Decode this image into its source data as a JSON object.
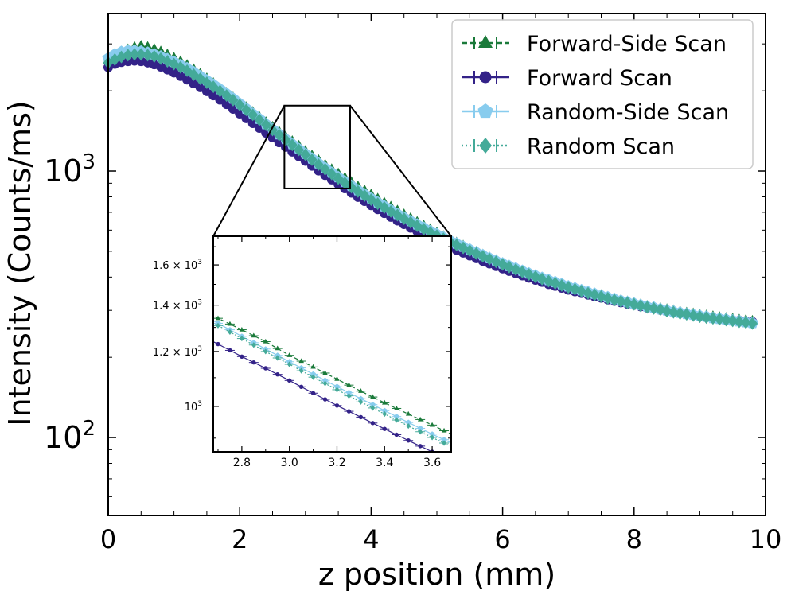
{
  "chart_data": {
    "type": "line",
    "xlabel": "z position (mm)",
    "ylabel": "Intensity (Counts/ms)",
    "xlim": [
      0,
      10
    ],
    "ylim": [
      51,
      3900
    ],
    "yscale": "log",
    "x_ticks": [
      "0",
      "2",
      "4",
      "6",
      "8",
      "10"
    ],
    "y_ticks": [
      {
        "base": "10",
        "exp": "2"
      },
      {
        "base": "10",
        "exp": "3"
      }
    ],
    "legend_position": "top-right",
    "x": [
      0.0,
      0.1,
      0.2,
      0.3,
      0.4,
      0.5,
      0.6,
      0.7,
      0.8,
      0.9,
      1.0,
      1.1,
      1.2,
      1.3,
      1.4,
      1.5,
      1.6,
      1.7,
      1.8,
      1.9,
      2.0,
      2.1,
      2.2,
      2.3,
      2.4,
      2.5,
      2.6,
      2.7,
      2.8,
      2.9,
      3.0,
      3.1,
      3.2,
      3.3,
      3.4,
      3.5,
      3.6,
      3.7,
      3.8,
      3.9,
      4.0,
      4.1,
      4.2,
      4.3,
      4.4,
      4.5,
      4.6,
      4.7,
      4.8,
      4.9,
      5.0,
      5.1,
      5.2,
      5.3,
      5.4,
      5.5,
      5.6,
      5.7,
      5.8,
      5.9,
      6.0,
      6.1,
      6.2,
      6.3,
      6.4,
      6.5,
      6.6,
      6.7,
      6.8,
      6.9,
      7.0,
      7.1,
      7.2,
      7.3,
      7.4,
      7.5,
      7.6,
      7.7,
      7.8,
      7.9,
      8.0,
      8.1,
      8.2,
      8.3,
      8.4,
      8.5,
      8.6,
      8.7,
      8.8,
      8.9,
      9.0,
      9.1,
      9.2,
      9.3,
      9.4,
      9.5,
      9.6,
      9.7,
      9.8
    ],
    "series": [
      {
        "name": "Forward-Side Scan",
        "color": "#1a7a3a",
        "dash": "7 4",
        "marker": "triangle",
        "values": [
          2600,
          2700,
          2780,
          2850,
          2910,
          2940,
          2910,
          2860,
          2800,
          2730,
          2650,
          2570,
          2490,
          2400,
          2310,
          2220,
          2130,
          2040,
          1960,
          1880,
          1800,
          1730,
          1660,
          1590,
          1520,
          1460,
          1400,
          1340,
          1290,
          1240,
          1185,
          1140,
          1095,
          1052,
          1012,
          975,
          940,
          905,
          872,
          842,
          813,
          785,
          758,
          732,
          708,
          685,
          663,
          642,
          622,
          603,
          585,
          568,
          552,
          537,
          523,
          509,
          496,
          484,
          472,
          461,
          450,
          440,
          430,
          421,
          412,
          404,
          396,
          389,
          382,
          375,
          369,
          363,
          357,
          351,
          346,
          341,
          336,
          331,
          327,
          323,
          319,
          315,
          311,
          308,
          305,
          302,
          299,
          296,
          293,
          291,
          288,
          286,
          284,
          282,
          280,
          278,
          276,
          275,
          273
        ]
      },
      {
        "name": "Forward Scan",
        "color": "#332288",
        "dash": "",
        "marker": "circle",
        "values": [
          2450,
          2520,
          2560,
          2580,
          2590,
          2580,
          2550,
          2510,
          2460,
          2400,
          2340,
          2270,
          2200,
          2130,
          2060,
          1990,
          1920,
          1850,
          1780,
          1710,
          1640,
          1575,
          1510,
          1450,
          1390,
          1335,
          1280,
          1230,
          1180,
          1135,
          1090,
          1045,
          1003,
          965,
          928,
          893,
          860,
          828,
          798,
          770,
          743,
          718,
          694,
          672,
          651,
          631,
          612,
          594,
          577,
          561,
          546,
          532,
          518,
          505,
          493,
          481,
          470,
          459,
          449,
          439,
          430,
          421,
          413,
          405,
          397,
          390,
          383,
          376,
          370,
          364,
          358,
          353,
          348,
          343,
          338,
          334,
          329,
          325,
          321,
          317,
          314,
          310,
          307,
          304,
          301,
          298,
          295,
          293,
          290,
          288,
          286,
          284,
          282,
          280,
          278,
          276,
          275,
          273,
          272
        ]
      },
      {
        "name": "Random-Side Scan",
        "color": "#88ccee",
        "dash": "",
        "marker": "pentagon",
        "values": [
          2650,
          2740,
          2800,
          2830,
          2830,
          2810,
          2780,
          2740,
          2690,
          2630,
          2570,
          2500,
          2430,
          2350,
          2270,
          2190,
          2110,
          2030,
          1950,
          1870,
          1790,
          1715,
          1640,
          1570,
          1500,
          1435,
          1375,
          1318,
          1262,
          1210,
          1160,
          1113,
          1068,
          1026,
          986,
          948,
          912,
          879,
          847,
          817,
          789,
          762,
          737,
          713,
          690,
          669,
          649,
          630,
          612,
          595,
          579,
          563,
          548,
          534,
          520,
          507,
          495,
          483,
          471,
          460,
          450,
          440,
          431,
          422,
          413,
          405,
          397,
          390,
          383,
          376,
          369,
          363,
          357,
          351,
          346,
          341,
          336,
          331,
          326,
          322,
          318,
          314,
          310,
          307,
          303,
          300,
          297,
          294,
          291,
          289,
          286,
          284,
          281,
          279,
          277,
          275,
          273,
          271,
          269
        ]
      },
      {
        "name": "Random Scan",
        "color": "#44aa99",
        "dash": "2 3",
        "marker": "diamond",
        "values": [
          2550,
          2620,
          2680,
          2720,
          2740,
          2740,
          2720,
          2690,
          2640,
          2580,
          2520,
          2450,
          2380,
          2300,
          2220,
          2145,
          2070,
          1995,
          1920,
          1845,
          1770,
          1695,
          1625,
          1555,
          1490,
          1425,
          1365,
          1308,
          1253,
          1200,
          1150,
          1102,
          1057,
          1015,
          975,
          937,
          902,
          869,
          838,
          808,
          780,
          754,
          729,
          705,
          683,
          662,
          642,
          623,
          605,
          588,
          572,
          557,
          542,
          528,
          515,
          502,
          490,
          478,
          467,
          456,
          446,
          436,
          427,
          418,
          409,
          401,
          393,
          386,
          379,
          372,
          366,
          360,
          354,
          348,
          343,
          338,
          333,
          328,
          324,
          320,
          316,
          312,
          308,
          305,
          302,
          298,
          295,
          292,
          290,
          287,
          284,
          282,
          280,
          278,
          276,
          274,
          272,
          270,
          268
        ]
      }
    ],
    "inset": {
      "xlim": [
        2.68,
        3.68
      ],
      "ylim": [
        860,
        1760
      ],
      "yscale": "log",
      "x_ticks": [
        "2.8",
        "3.0",
        "3.2",
        "3.4",
        "3.6"
      ],
      "y_ticks": [
        {
          "value": 1000,
          "label": "10",
          "exp": "3"
        },
        {
          "value": 1200,
          "label": "1.2 × 10",
          "exp": "3"
        },
        {
          "value": 1400,
          "label": "1.4 × 10",
          "exp": "3"
        },
        {
          "value": 1600,
          "label": "1.6 × 10",
          "exp": "3"
        }
      ]
    }
  }
}
